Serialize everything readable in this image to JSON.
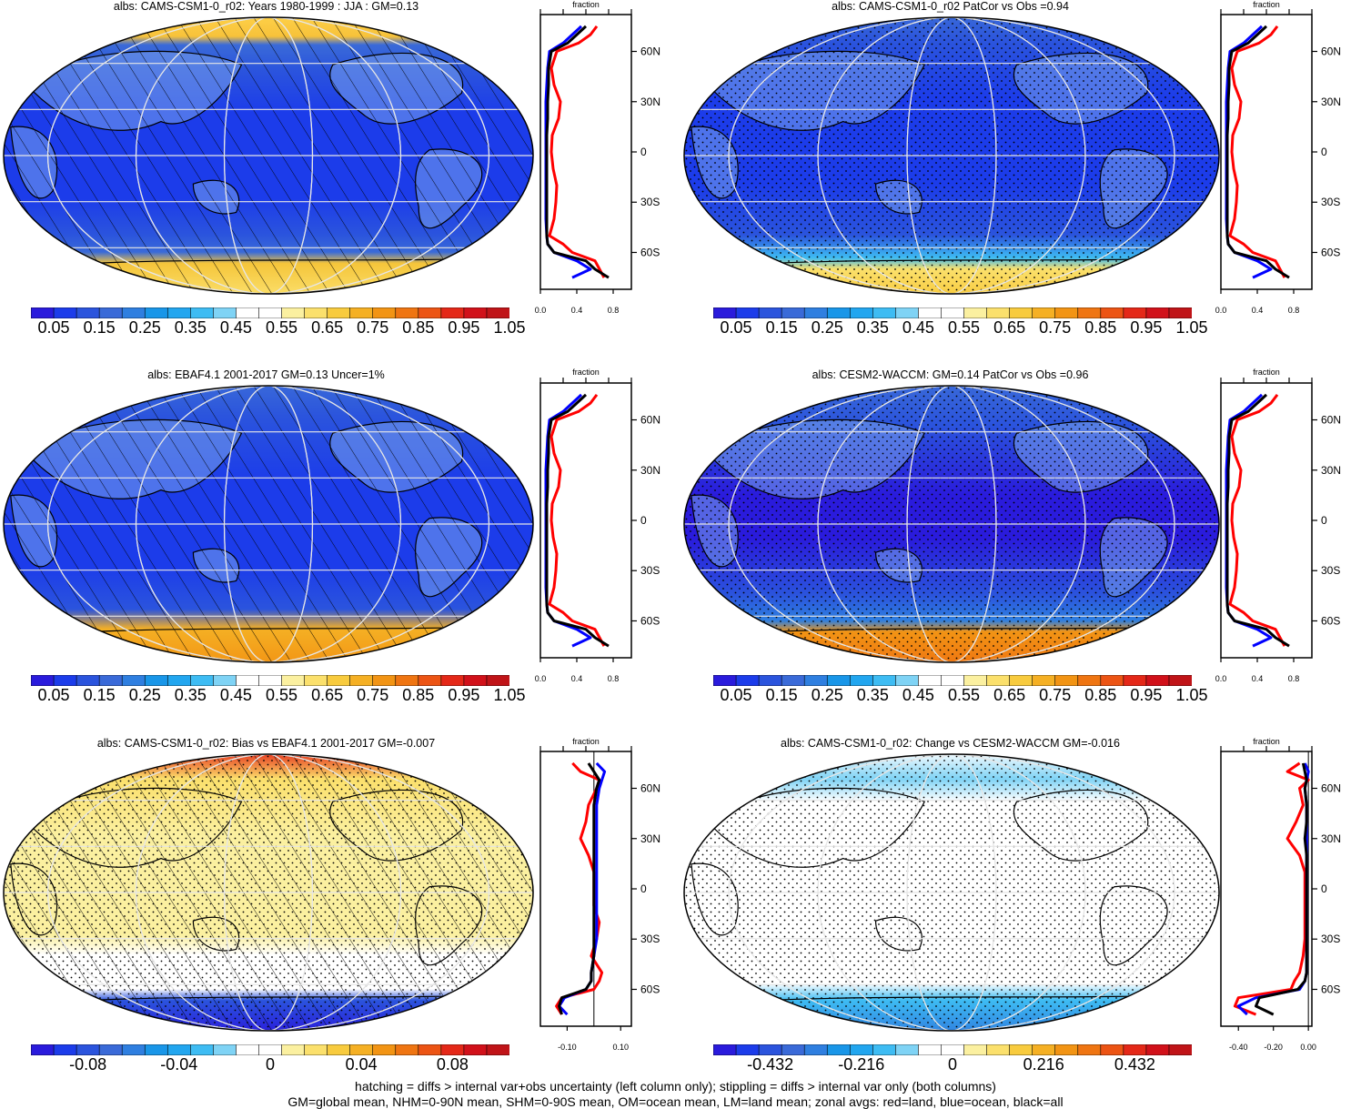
{
  "colors": {
    "abs_palette": [
      "#2a1bdc",
      "#1c3cea",
      "#2b54dd",
      "#3a6ad8",
      "#2f7fe0",
      "#1996e8",
      "#22a6ef",
      "#3ebcf3",
      "#7fd3f5",
      "#ffffff",
      "#ffffff",
      "#fbf0a0",
      "#fbe06c",
      "#f8cb3e",
      "#f5b024",
      "#f29414",
      "#ef7512",
      "#ec5414",
      "#e42818",
      "#d1111a",
      "#c01418"
    ],
    "diff_palette": [
      "#2a1bdc",
      "#1c3cea",
      "#2b54dd",
      "#3a6ad8",
      "#2f7fe0",
      "#1996e8",
      "#22a6ef",
      "#3ebcf3",
      "#7fd3f5",
      "#ffffff",
      "#ffffff",
      "#fbf0a0",
      "#fbe06c",
      "#f8cb3e",
      "#f5b024",
      "#f29414",
      "#ef7512",
      "#ec5414",
      "#e42818",
      "#d1111a",
      "#c01418"
    ],
    "land": "red",
    "ocean": "blue",
    "all": "black"
  },
  "panels": [
    {
      "title": "albs: CAMS-CSM1-0_r02: Years 1980-1999 : JJA : GM=0.13",
      "colorbar": "abs",
      "hatch": true,
      "stipple": false,
      "zonal_xlabels": [
        "0.0",
        "0.4",
        "0.8"
      ],
      "zonal_label": "fraction",
      "map_bands": [
        [
          "#ffd24a",
          0
        ],
        [
          "#f7c23a",
          0.08
        ],
        [
          "#3a6ad8",
          0.11
        ],
        [
          "#2b54dd",
          0.2
        ],
        [
          "#1c3cea",
          0.35
        ],
        [
          "#1c3cea",
          0.65
        ],
        [
          "#2b54dd",
          0.78
        ],
        [
          "#3a6ad8",
          0.84
        ],
        [
          "#f5c53a",
          0.88
        ],
        [
          "#fbe06c",
          1
        ]
      ]
    },
    {
      "title": "albs: CAMS-CSM1-0_r02 PatCor vs Obs =0.94",
      "colorbar": "abs",
      "hatch": false,
      "stipple": true,
      "zonal_xlabels": [
        "0.0",
        "0.4",
        "0.8"
      ],
      "zonal_label": "fraction",
      "map_bands": [
        [
          "#3a6ad8",
          0
        ],
        [
          "#2b54dd",
          0.1
        ],
        [
          "#1c3cea",
          0.3
        ],
        [
          "#1c3cea",
          0.6
        ],
        [
          "#2b54dd",
          0.78
        ],
        [
          "#3ebcf3",
          0.86
        ],
        [
          "#fbe06c",
          0.9
        ],
        [
          "#f8cb3e",
          1
        ]
      ]
    },
    {
      "title": "albs: EBAF4.1 2001-2017 GM=0.13 Uncer=1%",
      "colorbar": "abs",
      "hatch": true,
      "stipple": false,
      "zonal_xlabels": [
        "0.0",
        "0.4",
        "0.8"
      ],
      "zonal_label": "fraction",
      "map_bands": [
        [
          "#3a6ad8",
          0
        ],
        [
          "#2b54dd",
          0.12
        ],
        [
          "#1c3cea",
          0.35
        ],
        [
          "#1c3cea",
          0.65
        ],
        [
          "#2b54dd",
          0.8
        ],
        [
          "#f5b024",
          0.87
        ],
        [
          "#f29414",
          1
        ]
      ]
    },
    {
      "title": "albs: CESM2-WACCM: GM=0.14 PatCor vs Obs =0.96",
      "colorbar": "abs",
      "hatch": false,
      "stipple": true,
      "zonal_xlabels": [
        "0.0",
        "0.4",
        "0.8"
      ],
      "zonal_label": "fraction",
      "map_bands": [
        [
          "#3a6ad8",
          0
        ],
        [
          "#2b54dd",
          0.15
        ],
        [
          "#2a1bdc",
          0.4
        ],
        [
          "#2a1bdc",
          0.55
        ],
        [
          "#2b54dd",
          0.75
        ],
        [
          "#2f7fe0",
          0.84
        ],
        [
          "#f29414",
          0.88
        ],
        [
          "#ef7512",
          1
        ]
      ]
    },
    {
      "title": "albs: CAMS-CSM1-0_r02: Bias vs EBAF4.1 2001-2017 GM=-0.007",
      "colorbar": "diff1",
      "hatch": true,
      "stipple": true,
      "zonal_xlabels": [
        "-0.10",
        "0.10"
      ],
      "zonal_label": "fraction",
      "map_bands": [
        [
          "#e42818",
          0
        ],
        [
          "#fbe06c",
          0.1
        ],
        [
          "#fbf0a0",
          0.3
        ],
        [
          "#fbf0a0",
          0.65
        ],
        [
          "#ffffff",
          0.72
        ],
        [
          "#ffffff",
          0.84
        ],
        [
          "#2b54dd",
          0.88
        ],
        [
          "#2a1bdc",
          1
        ]
      ]
    },
    {
      "title": "albs: CAMS-CSM1-0_r02: Change vs CESM2-WACCM GM=-0.016",
      "colorbar": "diff2",
      "hatch": false,
      "stipple": true,
      "zonal_xlabels": [
        "-0.40",
        "-0.20",
        "0.00"
      ],
      "zonal_label": "fraction",
      "map_bands": [
        [
          "#ffffff",
          0
        ],
        [
          "#7fd3f5",
          0.1
        ],
        [
          "#ffffff",
          0.18
        ],
        [
          "#ffffff",
          0.82
        ],
        [
          "#3ebcf3",
          0.88
        ],
        [
          "#2f7fe0",
          1
        ]
      ]
    }
  ],
  "zonal_ylabels": [
    "60N",
    "30N",
    "0",
    "30S",
    "60S"
  ],
  "colorbars": {
    "abs": [
      "0.05",
      "0.15",
      "0.25",
      "0.35",
      "0.45",
      "0.55",
      "0.65",
      "0.75",
      "0.85",
      "0.95",
      "1.05"
    ],
    "diff1": [
      "-0.08",
      "-0.04",
      "0",
      "0.04",
      "0.08"
    ],
    "diff2": [
      "-0.432",
      "-0.216",
      "0",
      "0.216",
      "0.432"
    ]
  },
  "chart_data": {
    "type": "heatmap",
    "variable": "albs",
    "season": "JJA",
    "panels": [
      {
        "title": "albs: CAMS-CSM1-0_r02: Years 1980-1999 : JJA : GM=0.13",
        "global_mean": 0.13
      },
      {
        "title": "albs: CAMS-CSM1-0_r02 PatCor vs Obs =0.94",
        "pattern_correlation": 0.94
      },
      {
        "title": "albs: EBAF4.1 2001-2017 GM=0.13 Uncer=1%",
        "global_mean": 0.13,
        "uncertainty_percent": 1
      },
      {
        "title": "albs: CESM2-WACCM: GM=0.14 PatCor vs Obs =0.96",
        "global_mean": 0.14,
        "pattern_correlation": 0.96
      },
      {
        "title": "albs: CAMS-CSM1-0_r02: Bias vs EBAF4.1 2001-2017 GM=-0.007",
        "global_mean": -0.007
      },
      {
        "title": "albs: CAMS-CSM1-0_r02: Change vs CESM2-WACCM GM=-0.016",
        "global_mean": -0.016
      }
    ],
    "zonal_profiles": {
      "lat": [
        75,
        70,
        65,
        60,
        50,
        40,
        30,
        20,
        10,
        0,
        -10,
        -20,
        -30,
        -40,
        -50,
        -55,
        -60,
        -65,
        -70,
        -75
      ],
      "abs_land": [
        0.62,
        0.55,
        0.42,
        0.18,
        0.12,
        0.15,
        0.22,
        0.2,
        0.13,
        0.12,
        0.14,
        0.18,
        0.17,
        0.15,
        0.1,
        0.25,
        0.35,
        0.6,
        0.65,
        0.7
      ],
      "abs_ocean": [
        0.45,
        0.35,
        0.25,
        0.1,
        0.08,
        0.07,
        0.06,
        0.06,
        0.06,
        0.06,
        0.06,
        0.06,
        0.06,
        0.06,
        0.07,
        0.08,
        0.15,
        0.4,
        0.55,
        0.35
      ],
      "abs_all": [
        0.5,
        0.4,
        0.3,
        0.12,
        0.09,
        0.09,
        0.08,
        0.08,
        0.07,
        0.07,
        0.07,
        0.07,
        0.07,
        0.07,
        0.07,
        0.08,
        0.15,
        0.5,
        0.6,
        0.75
      ],
      "diff1_land": [
        -0.08,
        -0.05,
        0.02,
        0.01,
        -0.02,
        -0.03,
        -0.05,
        -0.02,
        0.0,
        0.0,
        0.0,
        0.02,
        0.01,
        -0.01,
        0.03,
        0.02,
        0.0,
        -0.12,
        -0.14,
        -0.12
      ],
      "diff1_ocean": [
        0.01,
        0.04,
        0.03,
        0.02,
        0.01,
        0.01,
        0.01,
        0.01,
        0.01,
        0.01,
        0.01,
        0.01,
        0.01,
        0.0,
        -0.01,
        -0.01,
        -0.03,
        -0.11,
        -0.13,
        -0.1
      ],
      "diff1_all": [
        -0.02,
        0.0,
        0.02,
        0.01,
        0.0,
        0.0,
        0.0,
        0.0,
        0.0,
        0.0,
        0.0,
        0.0,
        0.0,
        0.0,
        -0.01,
        -0.01,
        -0.03,
        -0.12,
        -0.13,
        -0.12
      ],
      "diff2_land": [
        -0.05,
        -0.12,
        0.0,
        -0.05,
        -0.03,
        -0.07,
        -0.12,
        -0.05,
        -0.02,
        -0.02,
        -0.02,
        -0.02,
        -0.02,
        -0.03,
        -0.05,
        -0.08,
        -0.1,
        -0.4,
        -0.42,
        -0.3
      ],
      "diff2_ocean": [
        -0.02,
        0.0,
        -0.01,
        -0.02,
        -0.01,
        -0.01,
        -0.01,
        -0.01,
        -0.01,
        -0.01,
        -0.01,
        -0.01,
        -0.01,
        -0.01,
        -0.01,
        -0.02,
        -0.05,
        -0.3,
        -0.4,
        -0.35
      ],
      "diff2_all": [
        -0.03,
        -0.02,
        -0.01,
        -0.02,
        -0.01,
        -0.01,
        -0.02,
        -0.01,
        -0.01,
        -0.01,
        -0.01,
        -0.01,
        -0.01,
        -0.01,
        -0.01,
        -0.02,
        -0.06,
        -0.28,
        -0.3,
        -0.2
      ]
    }
  },
  "footnote_line1": "hatching = diffs > internal var+obs uncertainty (left column only); stippling = diffs > internal var only (both columns)",
  "footnote_line2": "GM=global mean, NHM=0-90N mean, SHM=0-90S mean, OM=ocean mean, LM=land mean; zonal avgs: red=land, blue=ocean, black=all"
}
